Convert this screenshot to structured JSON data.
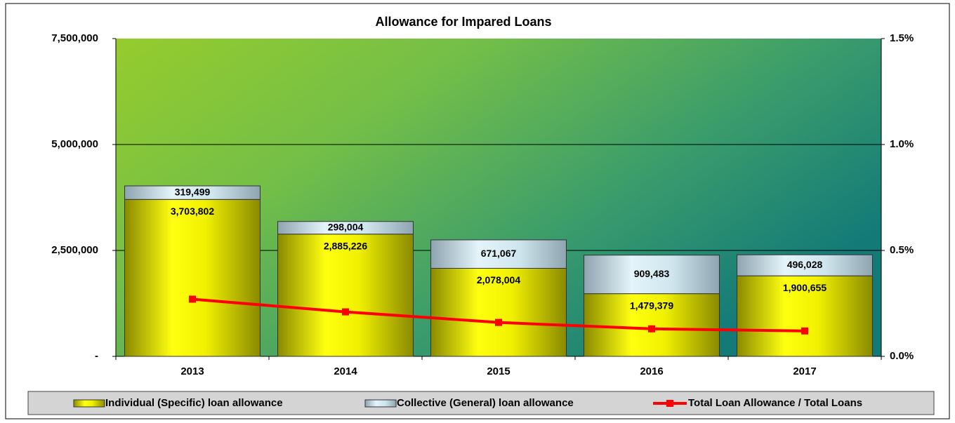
{
  "chart_data": {
    "type": "bar",
    "stacked": true,
    "title": "Allowance for Impared Loans",
    "categories": [
      "2013",
      "2014",
      "2015",
      "2016",
      "2017"
    ],
    "series": [
      {
        "name": "Individual (Specific) loan allowance",
        "color": "#e6e600",
        "values": [
          3703802,
          2885226,
          2078004,
          1479379,
          1900655
        ],
        "value_labels": [
          "3,703,802",
          "2,885,226",
          "2,078,004",
          "1,479,379",
          "1,900,655"
        ]
      },
      {
        "name": "Collective (General) loan allowance",
        "color": "#c6e2ec",
        "values": [
          319499,
          298004,
          671067,
          909483,
          496028
        ],
        "value_labels": [
          "319,499",
          "298,004",
          "671,067",
          "909,483",
          "496,028"
        ]
      },
      {
        "name": "Total Loan Allowance / Total Loans",
        "color": "#ff0000",
        "type": "line",
        "axis": "y2",
        "values": [
          0.27,
          0.21,
          0.16,
          0.13,
          0.12
        ]
      }
    ],
    "ylim": [
      0,
      7500000
    ],
    "yticks": [
      {
        "value": 0,
        "label": "-"
      },
      {
        "value": 2500000,
        "label": "2,500,000"
      },
      {
        "value": 5000000,
        "label": "5,000,000"
      },
      {
        "value": 7500000,
        "label": "7,500,000"
      }
    ],
    "y2lim": [
      0,
      1.5
    ],
    "y2ticks": [
      {
        "value": 0,
        "label": "0.0%"
      },
      {
        "value": 0.5,
        "label": "0.5%"
      },
      {
        "value": 1,
        "label": "1.0%"
      },
      {
        "value": 1.5,
        "label": "1.5%"
      }
    ],
    "grid": true,
    "legend": "bottom"
  }
}
